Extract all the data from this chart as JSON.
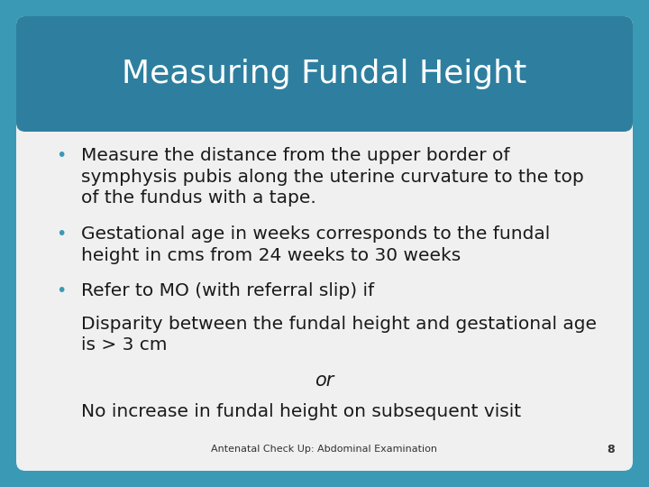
{
  "title": "Measuring Fundal Height",
  "title_color": "#ffffff",
  "title_bg_color": "#2e7f9f",
  "outer_bg_color": "#3a9ab5",
  "inner_bg_color": "#f0f0f0",
  "bullet_color": "#3a9ab5",
  "text_color": "#1a1a1a",
  "footer_text": "Antenatal Check Up: Abdominal Examination",
  "footer_page": "8",
  "bullet_points": [
    "Measure the distance from the upper border of\nsymphysis pubis along the uterine curvature to the top\nof the fundus with a tape.",
    "Gestational age in weeks corresponds to the fundal\nheight in cms from 24 weeks to 30 weeks",
    "Refer to MO (with referral slip) if"
  ],
  "sub_text_1": "Disparity between the fundal height and gestational age\nis > 3 cm",
  "sub_text_or": "or",
  "sub_text_2": "No increase in fundal height on subsequent visit"
}
